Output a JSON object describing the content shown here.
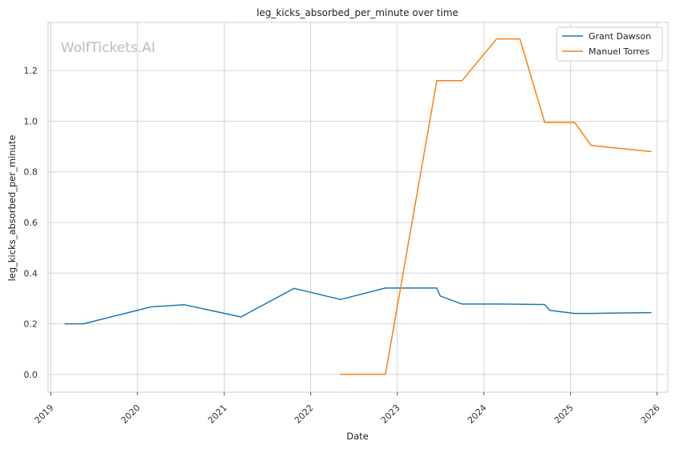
{
  "chart_data": {
    "type": "line",
    "title": "leg_kicks_absorbed_per_minute over time",
    "xlabel": "Date",
    "ylabel": "leg_kicks_absorbed_per_minute",
    "watermark": "WolfTickets.AI",
    "x_ticks": [
      "2019",
      "2020",
      "2021",
      "2022",
      "2023",
      "2024",
      "2025",
      "2026"
    ],
    "y_ticks": [
      "0.0",
      "0.2",
      "0.4",
      "0.6",
      "0.8",
      "1.0",
      "1.2"
    ],
    "xlim": [
      "2018-12-20",
      "2026-02-15"
    ],
    "ylim": [
      -0.07,
      1.39
    ],
    "grid": true,
    "legend_position": "top-right",
    "series": [
      {
        "name": "Grant Dawson",
        "color": "#1f77b4",
        "points": [
          [
            "2019-03-02",
            0.2
          ],
          [
            "2019-05-18",
            0.2
          ],
          [
            "2020-02-29",
            0.267
          ],
          [
            "2020-07-18",
            0.275
          ],
          [
            "2021-03-13",
            0.227
          ],
          [
            "2021-10-23",
            0.34
          ],
          [
            "2022-05-07",
            0.296
          ],
          [
            "2022-11-12",
            0.341
          ],
          [
            "2023-06-17",
            0.341
          ],
          [
            "2023-07-01",
            0.31
          ],
          [
            "2023-10-01",
            0.278
          ],
          [
            "2024-03-01",
            0.278
          ],
          [
            "2024-09-14",
            0.276
          ],
          [
            "2024-10-05",
            0.253
          ],
          [
            "2025-01-18",
            0.241
          ],
          [
            "2025-03-29",
            0.241
          ],
          [
            "2025-12-06",
            0.244
          ]
        ]
      },
      {
        "name": "Manuel Torres",
        "color": "#ff7f0e",
        "points": [
          [
            "2022-05-07",
            0.0
          ],
          [
            "2022-11-12",
            0.0
          ],
          [
            "2023-06-17",
            1.16
          ],
          [
            "2023-10-01",
            1.16
          ],
          [
            "2024-02-24",
            1.325
          ],
          [
            "2024-06-01",
            1.325
          ],
          [
            "2024-09-14",
            0.995
          ],
          [
            "2025-01-18",
            0.995
          ],
          [
            "2025-03-29",
            0.904
          ],
          [
            "2025-12-06",
            0.88
          ]
        ]
      }
    ]
  }
}
